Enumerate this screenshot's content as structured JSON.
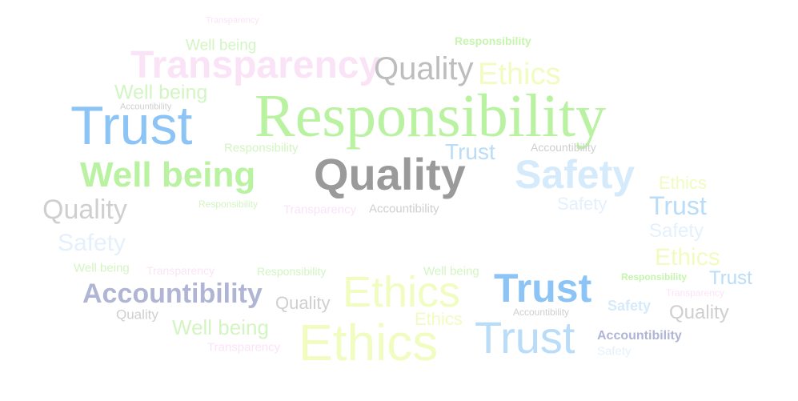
{
  "colors": {
    "trust": "#8cc4f6",
    "trust_light": "#b9dcf8",
    "responsibility": "#b9f2a0",
    "responsibility_light": "#d3f5c2",
    "quality": "#a9a9a9",
    "quality_light": "#cfcfcf",
    "transparency": "#fbe3f7",
    "wellbeing": "#c6f5ad",
    "ethics": "#f0fcc0",
    "safety": "#d5ebfb",
    "accountibility": "#b0b5d6",
    "accountibility_light": "#cfd2e6"
  },
  "words": [
    {
      "text": "Transparency"
    },
    {
      "text": "Well being"
    },
    {
      "text": "Responsibility"
    },
    {
      "text": "Transparency"
    },
    {
      "text": "Quality"
    },
    {
      "text": "Ethics"
    },
    {
      "text": "Well being"
    },
    {
      "text": "Accountibility"
    },
    {
      "text": "Trust"
    },
    {
      "text": "Responsibility"
    },
    {
      "text": "Responsibility"
    },
    {
      "text": "Trust"
    },
    {
      "text": "Accountibility"
    },
    {
      "text": "Well being"
    },
    {
      "text": "Quality"
    },
    {
      "text": "Safety"
    },
    {
      "text": "Ethics"
    },
    {
      "text": "Trust"
    },
    {
      "text": "Quality"
    },
    {
      "text": "Responsibility"
    },
    {
      "text": "Transparency"
    },
    {
      "text": "Accountibility"
    },
    {
      "text": "Safety"
    },
    {
      "text": "Safety"
    },
    {
      "text": "Safety"
    },
    {
      "text": "Ethics"
    },
    {
      "text": "Well being"
    },
    {
      "text": "Transparency"
    },
    {
      "text": "Responsibility"
    },
    {
      "text": "Well being"
    },
    {
      "text": "Ethics"
    },
    {
      "text": "Trust"
    },
    {
      "text": "Responsibility"
    },
    {
      "text": "Trust"
    },
    {
      "text": "Accountibility"
    },
    {
      "text": "Quality"
    },
    {
      "text": "Transparency"
    },
    {
      "text": "Safety"
    },
    {
      "text": "Quality"
    },
    {
      "text": "Quality"
    },
    {
      "text": "Accountibility"
    },
    {
      "text": "Well being"
    },
    {
      "text": "Ethics"
    },
    {
      "text": "Ethics"
    },
    {
      "text": "Trust"
    },
    {
      "text": "Accountibility"
    },
    {
      "text": "Transparency"
    },
    {
      "text": "Safety"
    }
  ]
}
